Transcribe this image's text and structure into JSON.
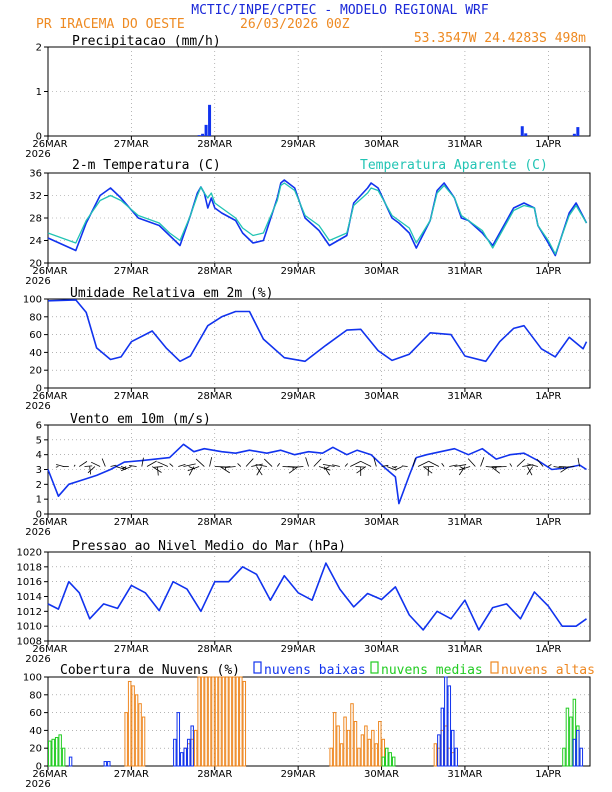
{
  "header": {
    "title": "MCTIC/INPE/CPTEC - MODELO REGIONAL WRF",
    "location": "PR IRACEMA DO OESTE",
    "run": "26/03/2026 00Z",
    "coords": "53.3547W 24.4283S 498m"
  },
  "colors": {
    "blue": "#1133ee",
    "cyan": "#22c4b4",
    "green": "#22cc22",
    "orange": "#ee8822",
    "title": "#1a28d8",
    "orange_text": "#ee8a22"
  },
  "chart_data": [
    {
      "type": "bar",
      "id": "precip",
      "title": "Precipitacao (mm/h)",
      "ylim": [
        0,
        2
      ],
      "yticks": [
        "0",
        "1",
        "2"
      ],
      "x_hours": [
        43.5,
        44.5,
        45.5,
        46.5,
        136.5,
        137.5,
        151.5,
        152.5
      ],
      "values": [
        0.02,
        0.05,
        0.25,
        0.7,
        0.22,
        0.06,
        0.05,
        0.2
      ]
    },
    {
      "type": "line",
      "id": "temp",
      "title": "2-m Temperatura (C)",
      "legend": "Temperatura Aparente (C)",
      "ylim": [
        18,
        36
      ],
      "yticks": [
        "20",
        "24",
        "28",
        "32",
        "36"
      ],
      "series": [
        {
          "name": "2-m Temperatura",
          "color": "blue",
          "t": [
            0,
            8,
            11,
            15,
            18,
            21,
            26,
            32,
            35,
            38,
            41,
            43,
            44,
            45,
            46,
            47,
            48,
            50,
            54,
            56,
            59,
            62,
            66,
            67,
            68,
            71,
            74,
            78,
            81,
            86,
            88,
            92,
            93,
            95,
            99,
            101,
            104,
            106,
            110,
            112,
            114,
            117,
            119,
            121,
            125,
            128,
            134,
            137,
            140,
            141,
            144,
            146,
            150,
            152,
            155
          ],
          "v": [
            23,
            20.5,
            26,
            31.5,
            33,
            31,
            27,
            25.5,
            23.5,
            21.5,
            27.5,
            32,
            33.2,
            32,
            29,
            31,
            29,
            28,
            26.5,
            24,
            22,
            22.5,
            31,
            34,
            34.6,
            33,
            27,
            24.5,
            21.5,
            23.5,
            30,
            33,
            34,
            33,
            27,
            26,
            24,
            21,
            26.5,
            32.5,
            34,
            31,
            27,
            26.5,
            24,
            21.5,
            29,
            30,
            29,
            25.5,
            22,
            19.5,
            28,
            30,
            26
          ]
        },
        {
          "name": "Temperatura Aparente",
          "color": "cyan",
          "t": [
            0,
            8,
            11,
            15,
            18,
            21,
            26,
            32,
            35,
            38,
            41,
            43,
            44,
            45,
            46,
            47,
            48,
            50,
            54,
            56,
            59,
            62,
            66,
            67,
            68,
            71,
            74,
            78,
            81,
            86,
            88,
            92,
            93,
            95,
            99,
            101,
            104,
            106,
            110,
            112,
            114,
            117,
            119,
            121,
            125,
            128,
            134,
            137,
            140,
            141,
            144,
            146,
            150,
            152,
            155
          ],
          "v": [
            24,
            22,
            26.5,
            30.5,
            31.5,
            30.5,
            27.5,
            26,
            24,
            22.5,
            27.5,
            31.5,
            33.2,
            32,
            31,
            32,
            30,
            29,
            27,
            25,
            23.5,
            24,
            30.5,
            33.5,
            34,
            32.5,
            27.5,
            25.5,
            22.5,
            24,
            29.5,
            32,
            33,
            32.5,
            27.5,
            26.5,
            25,
            22,
            26.5,
            32,
            33.5,
            31,
            27.5,
            26.5,
            24.5,
            21,
            28.5,
            29.5,
            29,
            25.5,
            22.5,
            19.8,
            27.5,
            29.5,
            26
          ]
        }
      ]
    },
    {
      "type": "line",
      "id": "rh",
      "title": "Umidade Relativa em 2m (%)",
      "ylim": [
        0,
        100
      ],
      "yticks": [
        "0",
        "20",
        "40",
        "60",
        "80",
        "100"
      ],
      "series": [
        {
          "name": "Umidade Relativa",
          "color": "blue",
          "t": [
            0,
            8,
            11,
            14,
            18,
            21,
            24,
            30,
            34,
            38,
            41,
            46,
            50,
            54,
            58,
            62,
            68,
            74,
            80,
            86,
            90,
            95,
            99,
            104,
            110,
            116,
            120,
            126,
            130,
            134,
            137,
            142,
            146,
            150,
            154,
            155
          ],
          "v": [
            98,
            99,
            85,
            45,
            32,
            35,
            52,
            64,
            45,
            30,
            36,
            70,
            80,
            86,
            86,
            55,
            34,
            30,
            48,
            65,
            66,
            42,
            31,
            38,
            62,
            60,
            36,
            30,
            52,
            67,
            70,
            44,
            35,
            57,
            44,
            52
          ]
        }
      ]
    },
    {
      "type": "line",
      "id": "wind",
      "title": "Vento em 10m (m/s)",
      "ylim": [
        0,
        6
      ],
      "yticks": [
        "0",
        "1",
        "2",
        "3",
        "4",
        "5",
        "6"
      ],
      "series": [
        {
          "name": "Vento",
          "color": "blue",
          "t": [
            0,
            3,
            6,
            10,
            14,
            18,
            22,
            27,
            31,
            35,
            39,
            42,
            45,
            50,
            54,
            58,
            63,
            67,
            71,
            75,
            79,
            82,
            86,
            89,
            93,
            97,
            100,
            101,
            104,
            106,
            109,
            113,
            117,
            121,
            125,
            129,
            133,
            137,
            141,
            145,
            149,
            153,
            155
          ],
          "v": [
            3,
            1.2,
            2,
            2.3,
            2.6,
            3,
            3.5,
            3.6,
            3.7,
            3.8,
            4.7,
            4.2,
            4.4,
            4.2,
            4.1,
            4.3,
            4.1,
            4.3,
            4,
            4.2,
            4.1,
            4.5,
            4,
            4.3,
            4,
            3.1,
            2.5,
            0.7,
            2.6,
            3.8,
            4,
            4.2,
            4.4,
            4,
            4.4,
            3.7,
            4,
            4.1,
            3.6,
            3,
            3.1,
            3.3,
            3
          ]
        }
      ]
    },
    {
      "type": "line",
      "id": "pres",
      "title": "Pressao ao Nivel Medio do Mar (hPa)",
      "ylim": [
        1008,
        1020
      ],
      "yticks": [
        "1008",
        "1010",
        "1012",
        "1014",
        "1016",
        "1018",
        "1020"
      ],
      "series": [
        {
          "name": "Pressao",
          "color": "blue",
          "t": [
            0,
            3,
            6,
            9,
            12,
            16,
            20,
            24,
            28,
            32,
            36,
            40,
            44,
            48,
            52,
            56,
            60,
            64,
            68,
            72,
            76,
            80,
            84,
            88,
            92,
            96,
            100,
            104,
            108,
            112,
            116,
            120,
            124,
            128,
            132,
            136,
            140,
            144,
            148,
            152,
            155
          ],
          "v": [
            1013,
            1012.3,
            1016,
            1014.5,
            1011,
            1013,
            1012.4,
            1015.5,
            1014.5,
            1012.1,
            1016,
            1015,
            1012,
            1016,
            1016,
            1018,
            1017,
            1013.5,
            1016.8,
            1014.5,
            1013.5,
            1018.5,
            1015,
            1012.6,
            1014.4,
            1013.6,
            1015.3,
            1011.5,
            1009.5,
            1012,
            1011,
            1013.5,
            1009.5,
            1012.5,
            1013,
            1011,
            1014.6,
            1012.7,
            1010,
            1010,
            1011
          ]
        }
      ]
    },
    {
      "type": "bar",
      "id": "cloud",
      "title": "Cobertura de Nuvens (%)",
      "legend": [
        "nuvens baixas",
        "nuvens medias",
        "nuvens altas"
      ],
      "ylim": [
        0,
        100
      ],
      "yticks": [
        "0",
        "20",
        "40",
        "60",
        "80",
        "100"
      ],
      "series": [
        {
          "name": "nuvens altas",
          "color": "orange",
          "t": [
            22,
            23,
            24,
            25,
            26,
            27,
            39,
            40,
            41,
            42,
            43,
            44,
            45,
            46,
            47,
            48,
            49,
            50,
            51,
            52,
            53,
            54,
            55,
            56,
            81,
            82,
            83,
            84,
            85,
            86,
            87,
            88,
            89,
            90,
            91,
            92,
            93,
            94,
            95,
            96,
            111,
            112,
            113,
            114,
            115,
            116
          ],
          "v": [
            60,
            95,
            90,
            80,
            70,
            55,
            20,
            25,
            30,
            40,
            100,
            100,
            100,
            100,
            100,
            100,
            100,
            100,
            100,
            100,
            100,
            100,
            100,
            95,
            20,
            60,
            45,
            25,
            55,
            40,
            70,
            50,
            20,
            35,
            45,
            30,
            40,
            25,
            50,
            30,
            25,
            20,
            40,
            45,
            20,
            15
          ]
        },
        {
          "name": "nuvens medias",
          "color": "green",
          "t": [
            0,
            1,
            2,
            3,
            4,
            96,
            97,
            98,
            99,
            148,
            149,
            150,
            151,
            152
          ],
          "v": [
            28,
            30,
            32,
            35,
            20,
            10,
            20,
            15,
            10,
            20,
            65,
            55,
            75,
            45
          ]
        },
        {
          "name": "nuvens baixas",
          "color": "blue",
          "t": [
            6,
            16,
            17,
            36,
            37,
            38,
            39,
            40,
            41,
            112,
            113,
            114,
            115,
            116,
            117,
            151,
            152,
            153
          ],
          "v": [
            10,
            5,
            5,
            30,
            60,
            15,
            20,
            30,
            45,
            35,
            65,
            100,
            90,
            40,
            20,
            30,
            40,
            20
          ]
        }
      ]
    }
  ],
  "x_axis": {
    "labels": [
      "26MAR",
      "27MAR",
      "28MAR",
      "29MAR",
      "30MAR",
      "31MAR",
      "1APR"
    ],
    "year": "2026"
  }
}
